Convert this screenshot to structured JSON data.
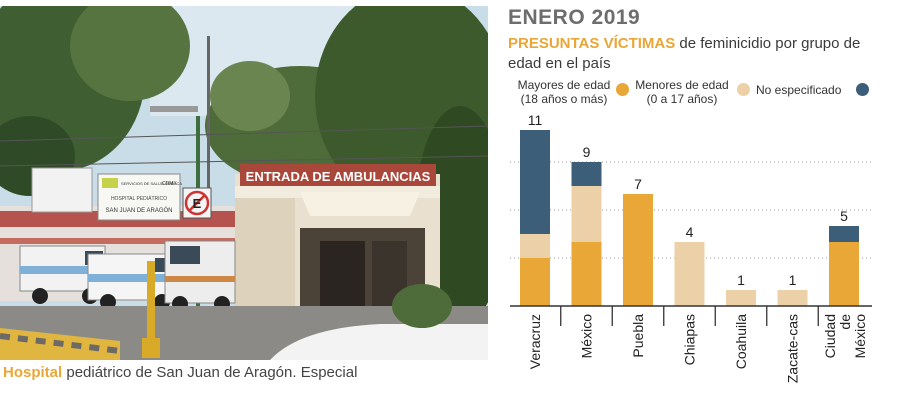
{
  "caption": {
    "highlight": "Hospital",
    "rest": " pediátrico de San Juan de Aragón.",
    "credit": " Especial"
  },
  "photo": {
    "entrance_sign": "ENTRADA DE AMBULANCIAS",
    "banner_org": "SERVICIOS DE SALUD PÚBLICA",
    "banner_cdmx": "CDMX",
    "banner_line1": "HOSPITAL PEDIÁTRICO",
    "banner_line2": "SAN JUAN DE ARAGÓN",
    "no_parking": "E"
  },
  "header": {
    "month": "ENERO 2019",
    "title_highlight": "PRESUNTAS VÍCTIMAS",
    "title_rest": " de feminicidio por grupo de edad en el país"
  },
  "legend": [
    {
      "line1": "Mayores de edad",
      "line2": "(18 años o más)",
      "color": "#e8a736"
    },
    {
      "line1": "Menores de edad",
      "line2": "(0 a 17 años)",
      "color": "#ecd1a8"
    },
    {
      "line1": "No especificado",
      "line2": "",
      "color": "#3d5e78"
    }
  ],
  "chart_data": {
    "type": "bar",
    "stacked": true,
    "title": "PRESUNTAS VÍCTIMAS de feminicidio por grupo de edad en el país",
    "categories": [
      "Veracruz",
      "México",
      "Puebla",
      "Chiapas",
      "Coahuila",
      "Zacate-cas",
      "Ciudad de México"
    ],
    "series": [
      {
        "name": "Mayores de edad (18 años o más)",
        "color": "#e8a736",
        "values": [
          3,
          4,
          7,
          0,
          0,
          0,
          4
        ]
      },
      {
        "name": "Menores de edad (0 a 17 años)",
        "color": "#ecd1a8",
        "values": [
          1.5,
          3.5,
          0,
          4,
          1,
          1,
          0
        ]
      },
      {
        "name": "No especificado",
        "color": "#3d5e78",
        "values": [
          6.5,
          1.5,
          0,
          0,
          0,
          0,
          1
        ]
      }
    ],
    "totals": [
      11,
      9,
      7,
      4,
      1,
      1,
      5
    ],
    "ylim": [
      0,
      11
    ],
    "grid": true,
    "legend_position": "top"
  }
}
